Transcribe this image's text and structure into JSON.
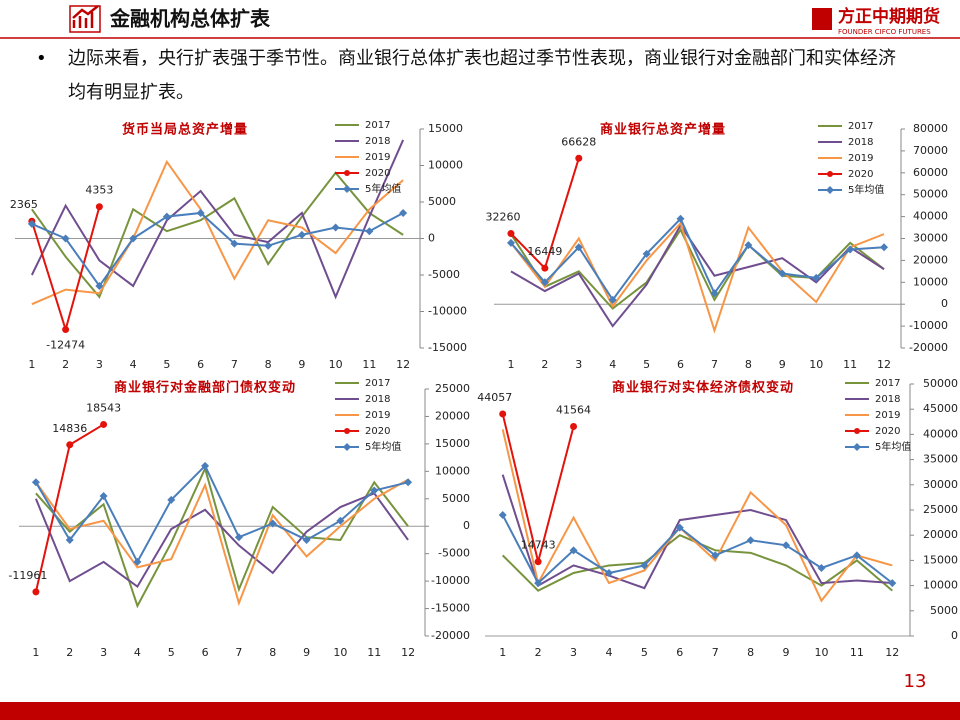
{
  "header": {
    "title": "金融机构总体扩表",
    "logo": "方正中期期货",
    "logo_en": "FOUNDER CIFCO FUTURES"
  },
  "bullet": "边际来看，央行扩表强于季节性。商业银行总体扩表也超过季节性表现，商业银行对金融部门和实体经济均有明显扩表。",
  "page_number": "13",
  "chart_data": [
    {
      "type": "line",
      "title": "货币当局总资产增量",
      "categories": [
        "1",
        "2",
        "3",
        "4",
        "5",
        "6",
        "7",
        "8",
        "9",
        "10",
        "11",
        "12"
      ],
      "ylim": [
        -15000,
        15000
      ],
      "yticks": [
        -15000,
        -10000,
        -5000,
        0,
        5000,
        10000,
        15000
      ],
      "series": [
        {
          "name": "2017",
          "color": "#77933c",
          "values": [
            4000,
            -2500,
            -8000,
            4000,
            1000,
            2500,
            5500,
            -3500,
            3000,
            9000,
            3500,
            500
          ]
        },
        {
          "name": "2018",
          "color": "#6f4d8f",
          "values": [
            -5000,
            4500,
            -3000,
            -6500,
            2500,
            6500,
            500,
            -500,
            3500,
            -8000,
            3000,
            13500
          ]
        },
        {
          "name": "2019",
          "color": "#f79646",
          "values": [
            -9000,
            -7000,
            -7500,
            0,
            10500,
            4000,
            -5500,
            2500,
            1500,
            -2000,
            4000,
            8000
          ]
        },
        {
          "name": "2020",
          "color": "#e3120b",
          "values": [
            2365,
            -12474,
            4353,
            null,
            null,
            null,
            null,
            null,
            null,
            null,
            null,
            null
          ]
        },
        {
          "name": "5年均值",
          "color": "#4a7ebb",
          "values": [
            2000,
            0,
            -6500,
            0,
            3000,
            3500,
            -700,
            -1000,
            500,
            1500,
            1000,
            3500
          ]
        }
      ]
    },
    {
      "type": "line",
      "title": "商业银行总资产增量",
      "categories": [
        "1",
        "2",
        "3",
        "4",
        "5",
        "6",
        "7",
        "8",
        "9",
        "10",
        "11",
        "12"
      ],
      "ylim": [
        -20000,
        80000
      ],
      "yticks": [
        -20000,
        -10000,
        0,
        10000,
        20000,
        30000,
        40000,
        50000,
        60000,
        70000,
        80000
      ],
      "series": [
        {
          "name": "2017",
          "color": "#77933c",
          "values": [
            32000,
            8000,
            15000,
            -2000,
            10000,
            34000,
            2000,
            27000,
            13000,
            12000,
            28000,
            16000
          ]
        },
        {
          "name": "2018",
          "color": "#6f4d8f",
          "values": [
            15000,
            6000,
            14000,
            -10000,
            9000,
            36000,
            13000,
            17000,
            21000,
            10000,
            26000,
            16000
          ]
        },
        {
          "name": "2019",
          "color": "#f79646",
          "values": [
            28000,
            8000,
            30000,
            -1000,
            20000,
            37000,
            -12000,
            35000,
            15000,
            1000,
            26000,
            32000
          ]
        },
        {
          "name": "2020",
          "color": "#e3120b",
          "values": [
            32260,
            16449,
            66628,
            null,
            null,
            null,
            null,
            null,
            null,
            null,
            null,
            null
          ]
        },
        {
          "name": "5年均值",
          "color": "#4a7ebb",
          "values": [
            28000,
            10000,
            26000,
            2000,
            23000,
            39000,
            5000,
            27000,
            14000,
            12000,
            25000,
            26000
          ]
        }
      ]
    },
    {
      "type": "line",
      "title": "商业银行对金融部门债权变动",
      "categories": [
        "1",
        "2",
        "3",
        "4",
        "5",
        "6",
        "7",
        "8",
        "9",
        "10",
        "11",
        "12"
      ],
      "ylim": [
        -20000,
        25000
      ],
      "yticks": [
        -20000,
        -15000,
        -10000,
        -5000,
        0,
        5000,
        10000,
        15000,
        20000,
        25000
      ],
      "series": [
        {
          "name": "2017",
          "color": "#77933c",
          "values": [
            6000,
            -1000,
            4000,
            -14500,
            -3000,
            10500,
            -11500,
            3500,
            -2000,
            -2500,
            8000,
            0
          ]
        },
        {
          "name": "2018",
          "color": "#6f4d8f",
          "values": [
            5000,
            -10000,
            -6500,
            -11000,
            -500,
            3000,
            -3500,
            -8500,
            -1000,
            3500,
            6000,
            -2500
          ]
        },
        {
          "name": "2019",
          "color": "#f79646",
          "values": [
            8000,
            -500,
            1000,
            -7500,
            -6000,
            7500,
            -14000,
            2000,
            -5500,
            0,
            5000,
            8500
          ]
        },
        {
          "name": "2020",
          "color": "#e3120b",
          "values": [
            -11961,
            14836,
            18543,
            null,
            null,
            null,
            null,
            null,
            null,
            null,
            null,
            null
          ]
        },
        {
          "name": "5年均值",
          "color": "#4a7ebb",
          "values": [
            8000,
            -2500,
            5500,
            -6500,
            4800,
            11000,
            -2000,
            500,
            -2500,
            1000,
            6500,
            8000
          ]
        }
      ]
    },
    {
      "type": "line",
      "title": "商业银行对实体经济债权变动",
      "categories": [
        "1",
        "2",
        "3",
        "4",
        "5",
        "6",
        "7",
        "8",
        "9",
        "10",
        "11",
        "12"
      ],
      "ylim": [
        0,
        50000
      ],
      "yticks": [
        0,
        5000,
        10000,
        15000,
        20000,
        25000,
        30000,
        35000,
        40000,
        45000,
        50000
      ],
      "series": [
        {
          "name": "2017",
          "color": "#77933c",
          "values": [
            16000,
            9000,
            12500,
            14000,
            14500,
            20000,
            17000,
            16500,
            14000,
            10000,
            15000,
            9000
          ]
        },
        {
          "name": "2018",
          "color": "#6f4d8f",
          "values": [
            32000,
            10000,
            14000,
            12000,
            9500,
            23000,
            24000,
            25000,
            23000,
            10500,
            11000,
            10500
          ]
        },
        {
          "name": "2019",
          "color": "#f79646",
          "values": [
            41000,
            10500,
            23500,
            10500,
            13000,
            21500,
            15000,
            28500,
            22000,
            7000,
            16000,
            14000
          ]
        },
        {
          "name": "2020",
          "color": "#e3120b",
          "values": [
            44057,
            14743,
            41564,
            null,
            null,
            null,
            null,
            null,
            null,
            null,
            null,
            null
          ]
        },
        {
          "name": "5年均值",
          "color": "#4a7ebb",
          "values": [
            24000,
            10500,
            17000,
            12500,
            14000,
            21500,
            16000,
            19000,
            18000,
            13500,
            16000,
            10500
          ]
        }
      ]
    }
  ]
}
